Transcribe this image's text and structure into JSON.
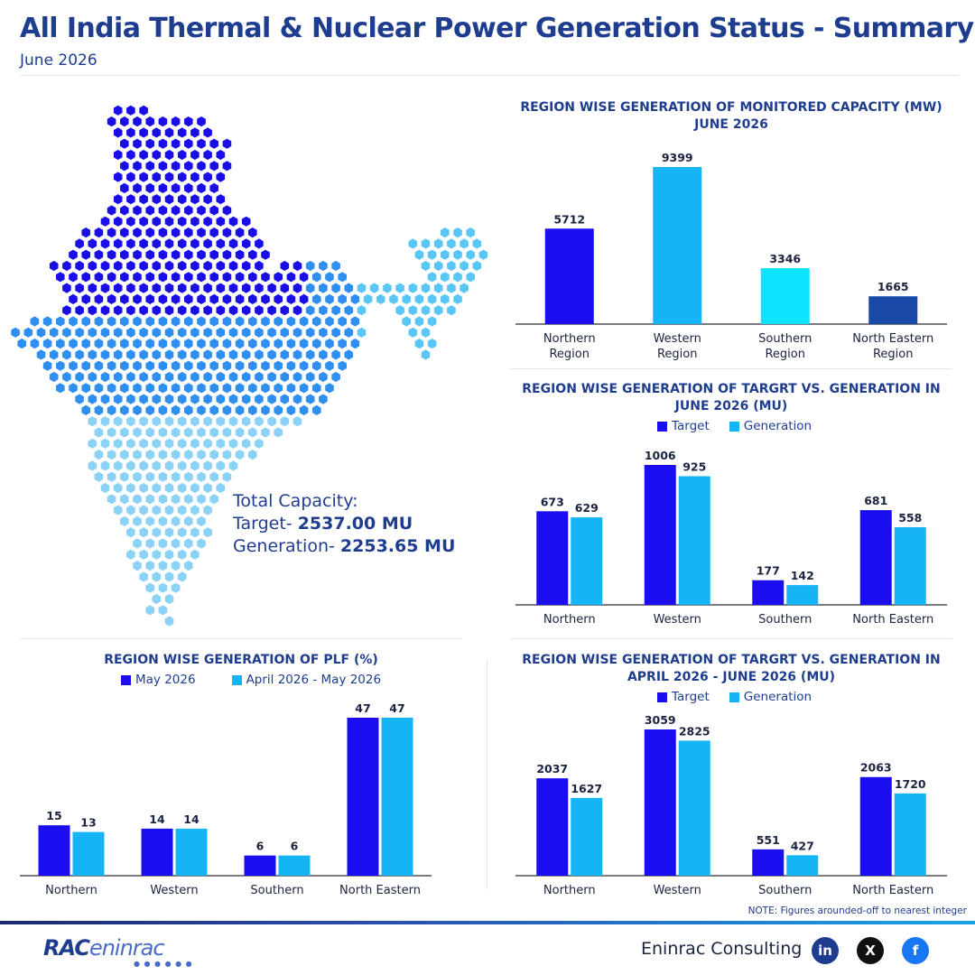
{
  "header": {
    "title": "All India Thermal & Nuclear Power Generation Status - Summary",
    "subtitle": "June 2026"
  },
  "colors": {
    "blue_dark": "#1a0ef0",
    "blue_light": "#15b4f5",
    "cyan": "#0ee4ff",
    "navy": "#1a4aa8",
    "title": "#1f3d8f"
  },
  "map": {
    "totals_label": "Total Capacity:",
    "target_label": "Target-",
    "target_value": "2537.00 MU",
    "generation_label": "Generation-",
    "generation_value": "2253.65 MU",
    "region_colors": {
      "north": "#1a0ee6",
      "west": "#2f8ff0",
      "south": "#8cd2f7",
      "northeast": "#59c6f5"
    }
  },
  "chart_data": [
    {
      "id": "capacity",
      "type": "bar",
      "title": "REGION WISE GENERATION OF MONITORED CAPACITY (MW)\nJUNE 2026",
      "categories": [
        "Northern\nRegion",
        "Western\nRegion",
        "Southern\nRegion",
        "North Eastern\nRegion"
      ],
      "values": [
        5712,
        9399,
        3346,
        1665
      ],
      "bar_colors": [
        "#1a0ef0",
        "#15b4f5",
        "#0ee4ff",
        "#1a4aa8"
      ],
      "ylim": [
        0,
        9399
      ]
    },
    {
      "id": "june",
      "type": "bar",
      "title": "REGION WISE GENERATION OF TARGRT VS. GENERATION IN\nJUNE 2026 (MU)",
      "categories": [
        "Northern",
        "Western",
        "Southern",
        "North Eastern"
      ],
      "series": [
        {
          "name": "Target",
          "values": [
            673,
            1006,
            177,
            681
          ],
          "color": "#1a0ef0"
        },
        {
          "name": "Generation",
          "values": [
            629,
            925,
            142,
            558
          ],
          "color": "#15b4f5"
        }
      ],
      "ylim": [
        0,
        1006
      ]
    },
    {
      "id": "plf",
      "type": "bar",
      "title": "REGION WISE GENERATION OF PLF (%)",
      "categories": [
        "Northern",
        "Western",
        "Southern",
        "North Eastern"
      ],
      "series": [
        {
          "name": "May 2026",
          "values": [
            15,
            14,
            6,
            47
          ],
          "color": "#1a0ef0"
        },
        {
          "name": "April 2026 - May 2026",
          "values": [
            13,
            14,
            6,
            47
          ],
          "color": "#15b4f5"
        }
      ],
      "ylim": [
        0,
        47
      ]
    },
    {
      "id": "apr",
      "type": "bar",
      "title": "REGION WISE GENERATION OF TARGRT VS. GENERATION IN\nAPRIL 2026 - JUNE 2026 (MU)",
      "categories": [
        "Northern",
        "Western",
        "Southern",
        "North Eastern"
      ],
      "series": [
        {
          "name": "Target",
          "values": [
            2037,
            3059,
            551,
            2063
          ],
          "color": "#1a0ef0"
        },
        {
          "name": "Generation",
          "values": [
            1627,
            2825,
            427,
            1720
          ],
          "color": "#15b4f5"
        }
      ],
      "ylim": [
        0,
        3059
      ]
    }
  ],
  "note": "NOTE: Figures arounded-off to nearest integer",
  "footer": {
    "logo_part1": "RAC",
    "logo_part2": "eninrac",
    "company": "Eninrac Consulting",
    "social": [
      {
        "name": "linkedin",
        "glyph": "in",
        "color": "#1f3d8f"
      },
      {
        "name": "x",
        "glyph": "X",
        "color": "#111111"
      },
      {
        "name": "facebook",
        "glyph": "f",
        "color": "#1877f2"
      }
    ]
  }
}
